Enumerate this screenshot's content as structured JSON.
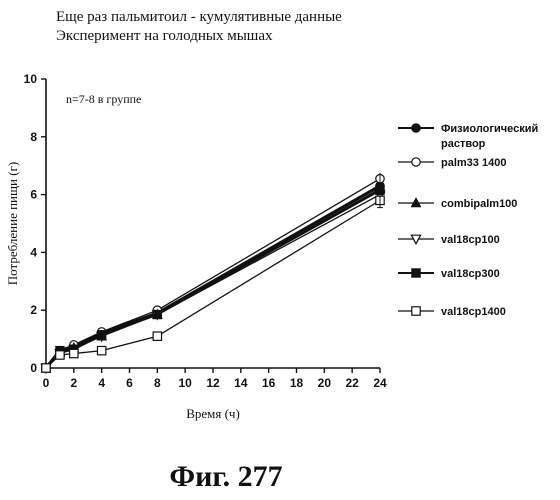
{
  "chart_data": {
    "type": "line",
    "title_lines": [
      "Еще раз пальмитоил - кумулятивные данные",
      "Эксперимент на голодных мышах"
    ],
    "annotation": "n=7-8 в группе",
    "xlabel": "Время (ч)",
    "ylabel": "Потребление пищи (г)",
    "x_ticks": [
      0,
      2,
      4,
      6,
      8,
      10,
      12,
      14,
      16,
      18,
      20,
      22,
      24
    ],
    "y_ticks": [
      0,
      2,
      4,
      6,
      8,
      10
    ],
    "xlim": [
      0,
      24
    ],
    "ylim": [
      0,
      10
    ],
    "x": [
      0,
      1,
      2,
      4,
      8,
      24
    ],
    "series": [
      {
        "name": "Физиологический раствор",
        "name_lines": [
          "Физиологический",
          "раствор"
        ],
        "marker": "filled-circle",
        "values": [
          0,
          0.6,
          0.75,
          1.2,
          1.9,
          6.3
        ]
      },
      {
        "name": "palm33 1400",
        "name_lines": [
          "palm33 1400"
        ],
        "marker": "open-circle",
        "values": [
          0,
          0.6,
          0.8,
          1.25,
          2.0,
          6.55
        ]
      },
      {
        "name": "combipalm100",
        "name_lines": [
          "combipalm100"
        ],
        "marker": "filled-triangle",
        "values": [
          0,
          0.55,
          0.7,
          1.1,
          1.85,
          6.2
        ]
      },
      {
        "name": "val18cp100",
        "name_lines": [
          "val18cp100"
        ],
        "marker": "open-triangle-down",
        "values": [
          0,
          0.5,
          0.65,
          1.1,
          1.85,
          6.0
        ]
      },
      {
        "name": "val18cp300",
        "name_lines": [
          "val18cp300"
        ],
        "marker": "filled-square",
        "values": [
          0,
          0.6,
          0.65,
          1.15,
          1.85,
          6.15
        ]
      },
      {
        "name": "val18cp1400",
        "name_lines": [
          "val18cp1400"
        ],
        "marker": "open-square",
        "values": [
          0,
          0.45,
          0.5,
          0.6,
          1.1,
          5.8
        ]
      }
    ],
    "grid": false,
    "legend_position": "right"
  },
  "figure_caption": "Фиг. 277"
}
